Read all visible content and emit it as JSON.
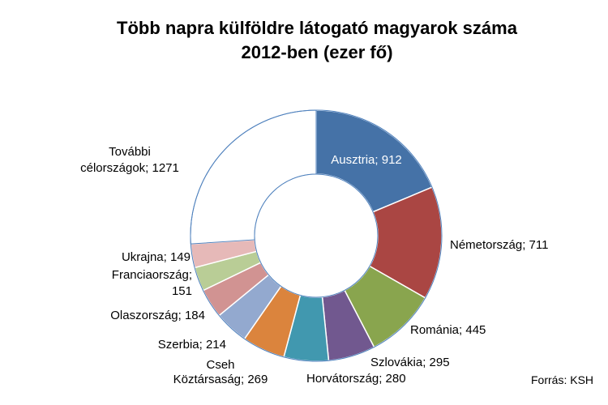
{
  "chart_data": {
    "type": "pie",
    "variant": "donut",
    "title_lines": [
      "Több napra külföldre látogató magyarok száma",
      "2012-ben (ezer fő)"
    ],
    "slices": [
      {
        "name": "Ausztria",
        "value": 912,
        "color": "#4572A7",
        "label_lines": [
          "Ausztria; 912"
        ]
      },
      {
        "name": "Németország",
        "value": 711,
        "color": "#AA4643",
        "label_lines": [
          "Németország; 711"
        ]
      },
      {
        "name": "Románia",
        "value": 445,
        "color": "#89A54E",
        "label_lines": [
          "Románia; 445"
        ]
      },
      {
        "name": "Szlovákia",
        "value": 295,
        "color": "#71588F",
        "label_lines": [
          "Szlovákia; 295"
        ]
      },
      {
        "name": "Horvátország",
        "value": 280,
        "color": "#4198AF",
        "label_lines": [
          "Horvátország; 280"
        ]
      },
      {
        "name": "Cseh Köztársaság",
        "value": 269,
        "color": "#DB843D",
        "label_lines": [
          "Cseh",
          "Köztársaság; 269"
        ]
      },
      {
        "name": "Szerbia",
        "value": 214,
        "color": "#93A9CF",
        "label_lines": [
          "Szerbia; 214"
        ]
      },
      {
        "name": "Olaszország",
        "value": 184,
        "color": "#D19392",
        "label_lines": [
          "Olaszország; 184"
        ]
      },
      {
        "name": "Franciaország",
        "value": 151,
        "color": "#B9CD96",
        "label_lines": [
          "Franciaország;",
          "151"
        ]
      },
      {
        "name": "Ukrajna",
        "value": 149,
        "color": "#E6B9B8",
        "label_lines": [
          "Ukrajna; 149"
        ]
      },
      {
        "name": "További célországok",
        "value": 1271,
        "color": "#FFFFFF",
        "label_lines": [
          "További",
          "célországok; 1271"
        ]
      }
    ],
    "legend": "none",
    "source": "Forrás: KSH"
  }
}
